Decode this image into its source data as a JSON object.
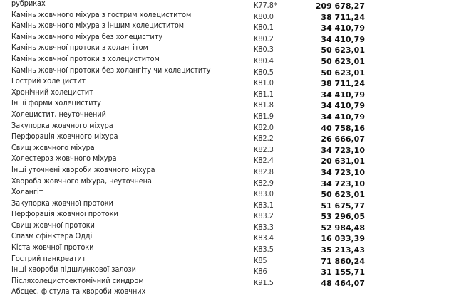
{
  "rows": [
    {
      "name": "рубриках",
      "code": "K77.8*",
      "price": "209 678,27"
    },
    {
      "name": "Камінь жовчного міхура з гострим холециститом",
      "code": "K80.0",
      "price": "38 711,24"
    },
    {
      "name": "Камінь жовчного міхура з іншим холециститом",
      "code": "K80.1",
      "price": "34 410,79"
    },
    {
      "name": "Камінь жовчного міхура без холециститу",
      "code": "K80.2",
      "price": "34 410,79"
    },
    {
      "name": "Камінь жовчної протоки з холангітом",
      "code": "K80.3",
      "price": "50 623,01"
    },
    {
      "name": "Камінь жовчної протоки з холециститом",
      "code": "K80.4",
      "price": "50 623,01"
    },
    {
      "name": "Камінь жовчної протоки без холангіту чи холециститу",
      "code": "K80.5",
      "price": "50 623,01"
    },
    {
      "name": "Гострий холецистит",
      "code": "K81.0",
      "price": "38 711,24"
    },
    {
      "name": "Хронічний холецистит",
      "code": "K81.1",
      "price": "34 410,79"
    },
    {
      "name": "Інші форми холециститу",
      "code": "K81.8",
      "price": "34 410,79"
    },
    {
      "name": "Холецистит, неуточнений",
      "code": "K81.9",
      "price": "34 410,79"
    },
    {
      "name": "Закупорка жовчного міхура",
      "code": "K82.0",
      "price": "40 758,16"
    },
    {
      "name": "Перфорація жовчного міхура",
      "code": "K82.2",
      "price": "26 666,07"
    },
    {
      "name": "Свищ жовчного міхура",
      "code": "K82.3",
      "price": "34 723,10"
    },
    {
      "name": "Холестероз жовчного міхура",
      "code": "K82.4",
      "price": "20 631,01"
    },
    {
      "name": "Інші уточнені хвороби жовчного міхура",
      "code": "K82.8",
      "price": "34 723,10"
    },
    {
      "name": "Хвороба жовчного міхура, неуточнена",
      "code": "K82.9",
      "price": "34 723,10"
    },
    {
      "name": "Холангіт",
      "code": "K83.0",
      "price": "50 623,01"
    },
    {
      "name": "Закупорка жовчної протоки",
      "code": "K83.1",
      "price": "51 675,77"
    },
    {
      "name": "Перфорація жовчної протоки",
      "code": "K83.2",
      "price": "53 296,05"
    },
    {
      "name": "Свищ жовчної протоки",
      "code": "K83.3",
      "price": "52 984,48"
    },
    {
      "name": "Спазм сфінктера Одді",
      "code": "K83.4",
      "price": "16 033,39"
    },
    {
      "name": "Кіста жовчної протоки",
      "code": "K83.5",
      "price": "35 213,43"
    },
    {
      "name": "Гострий панкреатит",
      "code": "K85",
      "price": "71 860,24"
    },
    {
      "name": "Інші хвороби підшлункової залози",
      "code": "K86",
      "price": "31 155,71"
    },
    {
      "name": "Післяхолецистоектомічний синдром",
      "code": "K91.5",
      "price": "48 464,07"
    },
    {
      "name": "Абсцес, фістула та хвороби жовчних",
      "code": "",
      "price": ""
    }
  ]
}
